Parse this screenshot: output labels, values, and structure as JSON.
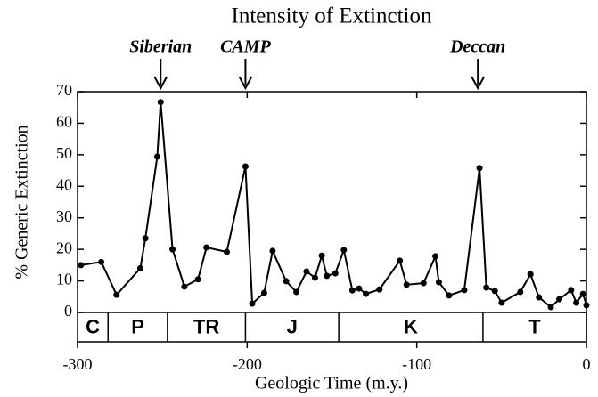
{
  "chart_data": {
    "type": "line",
    "title": "Intensity of Extinction",
    "x_label": "Geologic Time (m.y.)",
    "y_label": "% Generic Extinction",
    "x": [
      -298,
      -286,
      -277,
      -263,
      -260,
      -253,
      -251,
      -244,
      -237,
      -229,
      -224,
      -212,
      -201,
      -197,
      -190,
      -185,
      -177,
      -171,
      -165,
      -160,
      -156,
      -153,
      -148,
      -143,
      -138,
      -134,
      -130,
      -122,
      -110,
      -106,
      -96,
      -89,
      -87,
      -81,
      -72,
      -63,
      -59,
      -54,
      -50,
      -39,
      -33,
      -28,
      -21,
      -16,
      -9,
      -6,
      -2,
      0
    ],
    "series": [
      {
        "color": "#000000",
        "values": [
          15,
          16,
          5.6,
          14,
          23.5,
          49.4,
          66.7,
          20,
          8.2,
          10.5,
          20.6,
          19.2,
          46.3,
          2.8,
          6.2,
          19.5,
          9.9,
          6.5,
          13,
          11,
          18,
          11.6,
          12.4,
          19.8,
          7,
          7.6,
          5.9,
          7.3,
          16.4,
          8.8,
          9.3,
          17.8,
          9.6,
          5.4,
          7.1,
          45.8,
          7.9,
          6.8,
          3.1,
          6.5,
          12.1,
          4.8,
          1.7,
          4.2,
          7.1,
          3.1,
          5.9,
          2.3
        ]
      }
    ],
    "xlim": [
      -300,
      0
    ],
    "ylim": [
      0,
      70
    ],
    "xticks": [
      -300,
      -200,
      -100,
      0
    ],
    "yticks": [
      0,
      10,
      20,
      30,
      40,
      50,
      60,
      70
    ],
    "annotations": [
      {
        "text": "Siberian",
        "x": -251
      },
      {
        "text": "CAMP",
        "x": -201
      },
      {
        "text": "Deccan",
        "x": -64
      }
    ],
    "periods": [
      {
        "label": "C",
        "start": -300,
        "end": -282
      },
      {
        "label": "P",
        "start": -282,
        "end": -247
      },
      {
        "label": "TR",
        "start": -247,
        "end": -201
      },
      {
        "label": "J",
        "start": -201,
        "end": -146
      },
      {
        "label": "K",
        "start": -146,
        "end": -61
      },
      {
        "label": "T",
        "start": -61,
        "end": 0
      }
    ]
  }
}
